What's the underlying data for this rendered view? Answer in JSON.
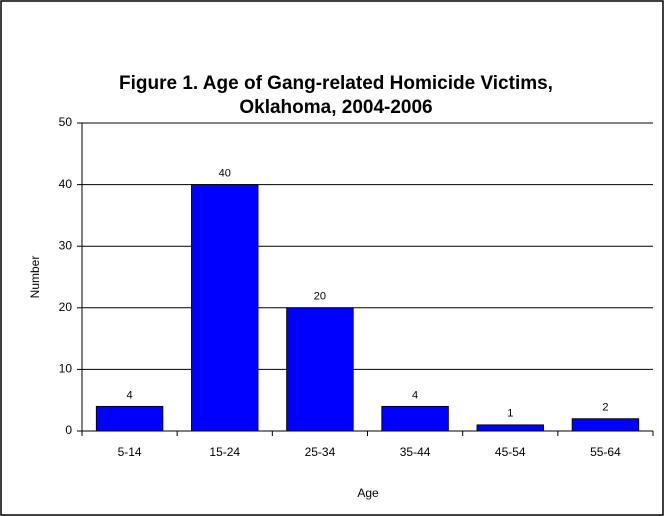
{
  "chart_data": {
    "type": "bar",
    "title": "Figure 1. Age of Gang-related Homicide Victims, Oklahoma, 2004-2006",
    "x_label": "Age",
    "y_label": "Number",
    "categories": [
      "5-14",
      "15-24",
      "25-34",
      "35-44",
      "45-54",
      "55-64"
    ],
    "values": [
      4,
      40,
      20,
      4,
      1,
      2
    ],
    "color": "#0000ff",
    "ylim": [
      0,
      50
    ],
    "yticks": [
      0,
      10,
      20,
      30,
      40,
      50
    ],
    "grid": true
  }
}
